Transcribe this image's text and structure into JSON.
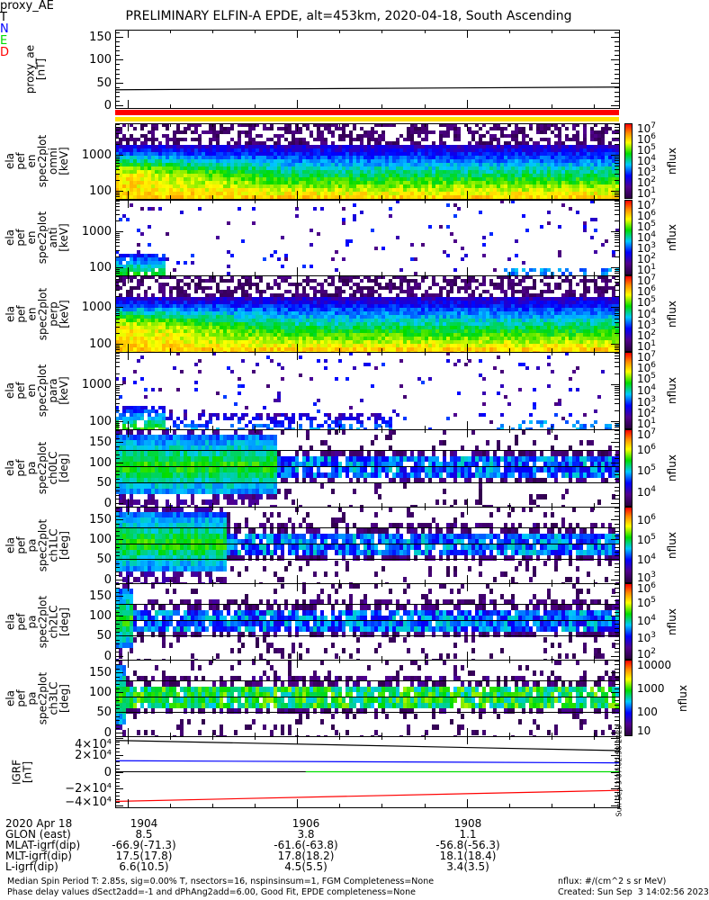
{
  "title": "PRELIMINARY ELFIN-A EPDE, alt=453km, 2020-04-18, South Ascending",
  "time_axis": {
    "range_min": [
      1903.85,
      1909.8
    ],
    "ticks": [
      {
        "label": "1904",
        "value": 1904
      },
      {
        "label": "1906",
        "value": 1906
      },
      {
        "label": "1908",
        "value": 1908
      }
    ]
  },
  "chart_data": [
    {
      "type": "line",
      "id": "proxy",
      "ylabel": [
        "proxy_ae",
        "[nT]"
      ],
      "scale": "linear",
      "ylim": [
        -6,
        166
      ],
      "yticks": [
        {
          "label": "150",
          "v": 150
        },
        {
          "label": "100",
          "v": 100
        },
        {
          "label": "50",
          "v": 50
        },
        {
          "label": "0",
          "v": 0
        }
      ],
      "series": [
        {
          "name": "proxy_AE",
          "color": "#000000",
          "x": [
            1903.85,
            1909.8
          ],
          "y": [
            34,
            40
          ]
        }
      ],
      "legend": "proxy_AE"
    },
    {
      "type": "heatmap",
      "id": "omni",
      "ylabel": [
        "ela",
        "pef",
        "en",
        "spec2plot",
        "omni",
        "[keV]"
      ],
      "scale": "log",
      "ylim": [
        60,
        7500
      ],
      "yticks": [
        {
          "label": "1000",
          "v": 1000
        },
        {
          "label": "100",
          "v": 100
        }
      ],
      "profile": "full",
      "cbar": {
        "title": "nflux",
        "ticks": [
          "7",
          "6",
          "5",
          "4",
          "3",
          "2",
          "1"
        ],
        "range_exp": [
          1,
          7
        ]
      }
    },
    {
      "type": "heatmap",
      "id": "anti",
      "ylabel": [
        "ela",
        "pef",
        "en",
        "spec2plot",
        "anti",
        "[keV]"
      ],
      "scale": "log",
      "ylim": [
        60,
        7500
      ],
      "yticks": [
        {
          "label": "1000",
          "v": 1000
        },
        {
          "label": "100",
          "v": 100
        }
      ],
      "profile": "sparse",
      "cbar": {
        "title": "nflux",
        "ticks": [
          "7",
          "6",
          "5",
          "4",
          "3",
          "2",
          "1"
        ],
        "range_exp": [
          1,
          7
        ]
      }
    },
    {
      "type": "heatmap",
      "id": "perp",
      "ylabel": [
        "ela",
        "pef",
        "en",
        "spec2plot",
        "perp",
        "[keV]"
      ],
      "scale": "log",
      "ylim": [
        60,
        7500
      ],
      "yticks": [
        {
          "label": "1000",
          "v": 1000
        },
        {
          "label": "100",
          "v": 100
        }
      ],
      "profile": "full",
      "cbar": {
        "title": "nflux",
        "ticks": [
          "7",
          "6",
          "5",
          "4",
          "3",
          "2",
          "1"
        ],
        "range_exp": [
          1,
          7
        ]
      }
    },
    {
      "type": "heatmap",
      "id": "para",
      "ylabel": [
        "ela",
        "pef",
        "en",
        "spec2plot",
        "para",
        "[keV]"
      ],
      "scale": "log",
      "ylim": [
        60,
        7500
      ],
      "yticks": [
        {
          "label": "1000",
          "v": 1000
        },
        {
          "label": "100",
          "v": 100
        }
      ],
      "profile": "sparse2",
      "cbar": {
        "title": "nflux",
        "ticks": [
          "7",
          "6",
          "5",
          "4",
          "3",
          "2",
          "1"
        ],
        "range_exp": [
          1,
          7
        ]
      }
    },
    {
      "type": "heatmap",
      "id": "ch0",
      "ylabel": [
        "ela",
        "pef",
        "pa",
        "spec2plot",
        "ch0LC",
        "[deg]"
      ],
      "scale": "linear",
      "ylim": [
        -10,
        182
      ],
      "yticks": [
        {
          "label": "150",
          "v": 150
        },
        {
          "label": "100",
          "v": 100
        },
        {
          "label": "50",
          "v": 50
        },
        {
          "label": "0",
          "v": 0
        }
      ],
      "profile": "pa0",
      "cbar": {
        "title": "nflux",
        "ticks": [
          "7",
          "6",
          "5",
          "4"
        ],
        "range_exp": [
          3.3,
          7
        ]
      }
    },
    {
      "type": "heatmap",
      "id": "ch1",
      "ylabel": [
        "ela",
        "pef",
        "pa",
        "spec2plot",
        "ch1LC",
        "[deg]"
      ],
      "scale": "linear",
      "ylim": [
        -10,
        182
      ],
      "yticks": [
        {
          "label": "150",
          "v": 150
        },
        {
          "label": "100",
          "v": 100
        },
        {
          "label": "50",
          "v": 50
        },
        {
          "label": "0",
          "v": 0
        }
      ],
      "profile": "pa1",
      "cbar": {
        "title": "nflux",
        "ticks": [
          "6",
          "5",
          "4",
          "3"
        ],
        "range_exp": [
          2.8,
          6.7
        ]
      }
    },
    {
      "type": "heatmap",
      "id": "ch2",
      "ylabel": [
        "ela",
        "pef",
        "pa",
        "spec2plot",
        "ch2LC",
        "[deg]"
      ],
      "scale": "linear",
      "ylim": [
        -10,
        182
      ],
      "yticks": [
        {
          "label": "150",
          "v": 150
        },
        {
          "label": "100",
          "v": 100
        },
        {
          "label": "50",
          "v": 50
        },
        {
          "label": "0",
          "v": 0
        }
      ],
      "profile": "pa2",
      "cbar": {
        "title": "nflux",
        "ticks": [
          "6",
          "5",
          "4",
          "3",
          "2"
        ],
        "range_exp": [
          1.8,
          6.1
        ]
      }
    },
    {
      "type": "heatmap",
      "id": "ch3",
      "ylabel": [
        "ela",
        "pef",
        "pa",
        "spec2plot",
        "ch3LC",
        "[deg]"
      ],
      "scale": "linear",
      "ylim": [
        -10,
        182
      ],
      "yticks": [
        {
          "label": "150",
          "v": 150
        },
        {
          "label": "100",
          "v": 100
        },
        {
          "label": "50",
          "v": 50
        },
        {
          "label": "0",
          "v": 0
        }
      ],
      "profile": "pa3",
      "cbar": {
        "title": "nflux",
        "plain_ticks": [
          "10000",
          "1000",
          "100",
          "10"
        ],
        "range_exp": [
          1,
          4.2
        ]
      }
    },
    {
      "type": "line",
      "id": "igrf",
      "ylabel": [
        "IGRF",
        "[nT]"
      ],
      "scale": "linear",
      "ylim": [
        -42000,
        42000
      ],
      "yticks": [
        {
          "label": "4×10⁴",
          "v": 40000
        },
        {
          "label": "2×10⁴",
          "v": 20000
        },
        {
          "label": "0",
          "v": 0
        },
        {
          "label": "−2×10⁴",
          "v": -20000
        },
        {
          "label": "−4×10⁴",
          "v": -40000
        }
      ],
      "series": [
        {
          "name": "T",
          "color": "#000000",
          "x": [
            1903.85,
            1909.8
          ],
          "y": [
            37000,
            25000
          ]
        },
        {
          "name": "N",
          "color": "#0000ff",
          "x": [
            1903.85,
            1909.8
          ],
          "y": [
            13000,
            10500
          ]
        },
        {
          "name": "E",
          "color": "#00dd00",
          "x": [
            1906.1,
            1909.8
          ],
          "y": [
            0,
            0
          ]
        },
        {
          "name": "D",
          "color": "#ff0000",
          "x": [
            1903.85,
            1909.8
          ],
          "y": [
            -35000,
            -22000
          ]
        }
      ]
    }
  ],
  "side_stamp": "Sun Sep  3 07:02:58 2023",
  "footer": {
    "rows": [
      {
        "label": "2020 Apr 18",
        "vals": [
          "1904",
          "1906",
          "1908"
        ]
      },
      {
        "label": "GLON (east)",
        "vals": [
          "8.5",
          "3.8",
          "1.1"
        ]
      },
      {
        "label": "MLAT-igrf(dip)",
        "vals": [
          "-66.9(-71.3)",
          "-61.6(-63.8)",
          "-56.8(-56.3)"
        ]
      },
      {
        "label": "MLT-igrf(dip)",
        "vals": [
          "17.5(17.8)",
          "17.8(18.2)",
          "18.1(18.4)"
        ]
      },
      {
        "label": "L-igrf(dip)",
        "vals": [
          "6.6(10.5)",
          "4.5(5.5)",
          "3.4(3.5)"
        ]
      }
    ],
    "note1": "Median Spin Period T: 2.85s, sig=0.00% T, nsectors=16, nspinsinsum=1, FGM Completeness=None",
    "note2": "Phase delay values dSect2add=-1 and dPhAng2add=6.00, Good Fit, EPDE completeness=None",
    "units": "nflux: #/(cm^2 s sr MeV)",
    "created": "Created: Sun Sep  3 14:02:56 2023"
  },
  "colors": {
    "red_bar": "#ff0000",
    "yellow_bar": "#ffe000"
  }
}
